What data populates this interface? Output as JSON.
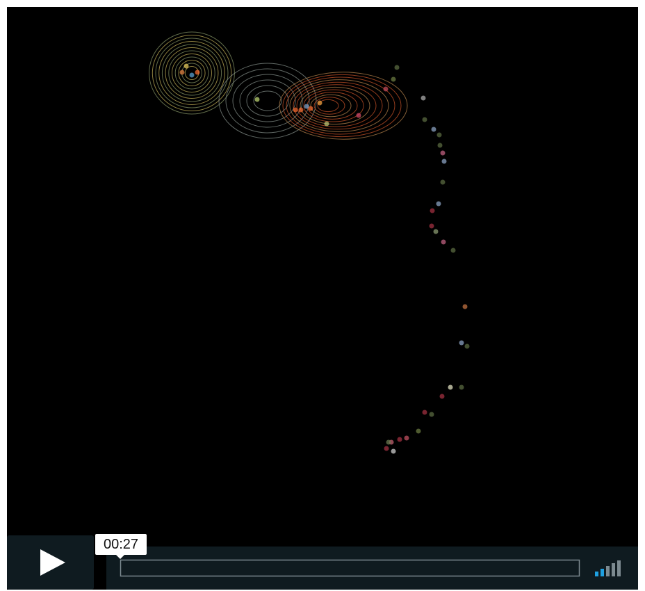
{
  "player": {
    "time": "00:27"
  }
}
